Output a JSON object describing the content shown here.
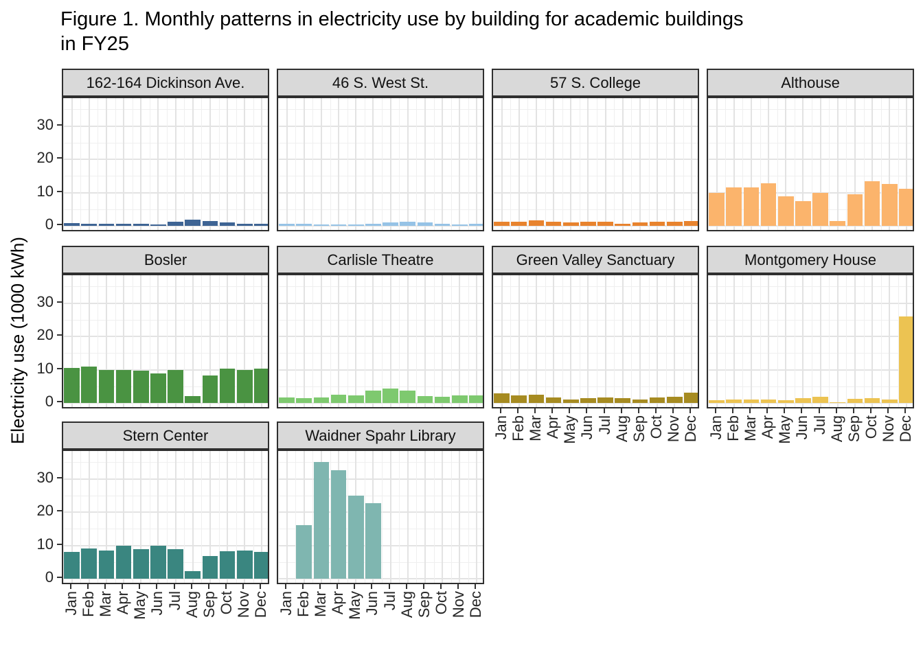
{
  "title": {
    "line1": "Figure 1. Monthly patterns in electricity use by building for academic buildings",
    "line2": "in FY25"
  },
  "chart_data": {
    "type": "bar",
    "title": "Figure 1. Monthly patterns in electricity use by building for academic buildings in FY25",
    "xlabel": "",
    "ylabel": "Electricity use (1000 kWh)",
    "ylim": [
      0,
      37
    ],
    "y_ticks": [
      "0",
      "10",
      "20",
      "30"
    ],
    "y_tick_values": [
      0,
      10,
      20,
      30
    ],
    "y_minor_values": [
      5,
      15,
      25,
      35
    ],
    "grid": true,
    "legend": "none",
    "categories": [
      "Jan",
      "Feb",
      "Mar",
      "Apr",
      "May",
      "Jun",
      "Jul",
      "Aug",
      "Sep",
      "Oct",
      "Nov",
      "Dec"
    ],
    "facets": [
      {
        "title": "162-164 Dickinson Ave.",
        "color": "#3e6494",
        "row": 1,
        "col": 1,
        "show_y": true,
        "show_x": false,
        "values": [
          0.8,
          0.7,
          0.6,
          0.65,
          0.55,
          0.4,
          1.3,
          1.8,
          1.5,
          1.0,
          0.55,
          0.7
        ]
      },
      {
        "title": "46 S. West St.",
        "color": "#96c3e6",
        "row": 1,
        "col": 2,
        "show_y": false,
        "show_x": false,
        "values": [
          0.6,
          0.6,
          0.45,
          0.5,
          0.4,
          0.65,
          1.1,
          1.25,
          1.0,
          0.65,
          0.45,
          0.55
        ]
      },
      {
        "title": "57 S. College",
        "color": "#e8832e",
        "row": 1,
        "col": 3,
        "show_y": false,
        "show_x": false,
        "values": [
          1.2,
          1.2,
          1.6,
          1.3,
          1.0,
          1.2,
          1.2,
          0.7,
          1.0,
          1.2,
          1.2,
          1.4
        ]
      },
      {
        "title": "Althouse",
        "color": "#fbb46c",
        "row": 1,
        "col": 4,
        "show_y": false,
        "show_x": false,
        "values": [
          10.0,
          11.5,
          11.5,
          12.8,
          8.8,
          7.5,
          9.8,
          1.5,
          9.5,
          13.5,
          12.5,
          11.2
        ]
      },
      {
        "title": "Bosler",
        "color": "#4a9342",
        "row": 2,
        "col": 1,
        "show_y": true,
        "show_x": false,
        "values": [
          10.5,
          11.0,
          10.0,
          9.8,
          9.6,
          8.9,
          10.0,
          2.1,
          8.3,
          10.3,
          10.0,
          10.4
        ]
      },
      {
        "title": "Carlisle Theatre",
        "color": "#7ec96f",
        "row": 2,
        "col": 2,
        "show_y": false,
        "show_x": false,
        "values": [
          1.7,
          1.4,
          1.6,
          2.5,
          2.2,
          3.8,
          4.4,
          3.7,
          2.1,
          1.8,
          2.3,
          2.3
        ]
      },
      {
        "title": "Green Valley Sanctuary",
        "color": "#a68b21",
        "row": 2,
        "col": 3,
        "show_y": false,
        "show_x": true,
        "values": [
          2.9,
          2.3,
          2.5,
          1.6,
          1.1,
          1.4,
          1.6,
          1.4,
          1.1,
          1.6,
          1.8,
          3.0
        ]
      },
      {
        "title": "Montgomery House",
        "color": "#ecc352",
        "row": 2,
        "col": 4,
        "show_y": false,
        "show_x": true,
        "values": [
          0.9,
          1.0,
          1.0,
          1.1,
          0.9,
          1.5,
          1.9,
          0.3,
          1.2,
          1.4,
          1.0,
          26.0
        ]
      },
      {
        "title": "Stern Center",
        "color": "#3a8680",
        "row": 3,
        "col": 1,
        "show_y": true,
        "show_x": true,
        "values": [
          8.0,
          9.0,
          8.4,
          9.8,
          8.8,
          9.8,
          8.8,
          2.3,
          6.9,
          8.3,
          8.5,
          8.1
        ]
      },
      {
        "title": "Waidner Spahr Library",
        "color": "#7fb6b0",
        "row": 3,
        "col": 2,
        "show_y": false,
        "show_x": true,
        "values": [
          null,
          16.0,
          35.0,
          32.5,
          25.0,
          22.7,
          null,
          null,
          null,
          null,
          null,
          null
        ]
      }
    ]
  }
}
